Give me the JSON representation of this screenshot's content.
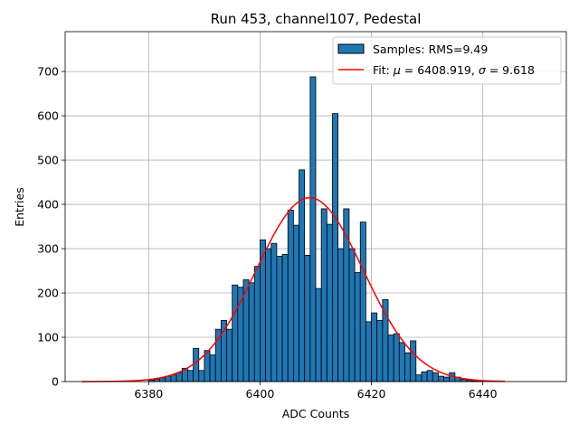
{
  "chart_data": {
    "type": "bar",
    "title": "Run 453, channel107, Pedestal",
    "xlabel": "ADC Counts",
    "ylabel": "Entries",
    "xlim": [
      6365,
      6455
    ],
    "ylim": [
      0,
      790
    ],
    "xticks": [
      6380,
      6400,
      6420,
      6440
    ],
    "yticks": [
      0,
      100,
      200,
      300,
      400,
      500,
      600,
      700
    ],
    "grid": true,
    "legend_position": "top-right",
    "colors": {
      "bar_fill": "#1f77b4",
      "bar_edge": "#000000",
      "fit_line": "#ff0000",
      "grid": "#b0b0b0"
    },
    "histogram": {
      "name": "Samples: RMS=9.49",
      "bin_width": 1,
      "bins_start": [
        6380,
        6381,
        6382,
        6383,
        6384,
        6385,
        6386,
        6387,
        6388,
        6389,
        6390,
        6391,
        6392,
        6393,
        6394,
        6395,
        6396,
        6397,
        6398,
        6399,
        6400,
        6401,
        6402,
        6403,
        6404,
        6405,
        6406,
        6407,
        6408,
        6409,
        6410,
        6411,
        6412,
        6413,
        6414,
        6415,
        6416,
        6417,
        6418,
        6419,
        6420,
        6421,
        6422,
        6423,
        6424,
        6425,
        6426,
        6427,
        6428,
        6429,
        6430,
        6431,
        6432,
        6433,
        6434,
        6435,
        6436,
        6437,
        6438,
        6439
      ],
      "counts": [
        3,
        5,
        8,
        12,
        15,
        20,
        30,
        25,
        75,
        25,
        70,
        60,
        118,
        138,
        118,
        218,
        213,
        230,
        223,
        260,
        320,
        300,
        312,
        283,
        287,
        387,
        353,
        478,
        285,
        688,
        210,
        390,
        355,
        605,
        300,
        390,
        300,
        246,
        360,
        135,
        155,
        138,
        185,
        105,
        108,
        88,
        65,
        92,
        15,
        22,
        25,
        20,
        12,
        10,
        20,
        10,
        5,
        3,
        2,
        1
      ]
    },
    "fit": {
      "name": "Fit: μ = 6408.919, σ = 9.618",
      "mu": 6408.919,
      "sigma": 9.618,
      "amplitude": 415,
      "x_range": [
        6368,
        6444
      ]
    }
  },
  "legend": {
    "histogram_label": "Samples: RMS=9.49",
    "fit_label_prefix": "Fit: ",
    "fit_mu_symbol": "μ",
    "fit_mu_value": " = 6408.919, ",
    "fit_sigma_symbol": "σ",
    "fit_sigma_value": " = 9.618"
  }
}
